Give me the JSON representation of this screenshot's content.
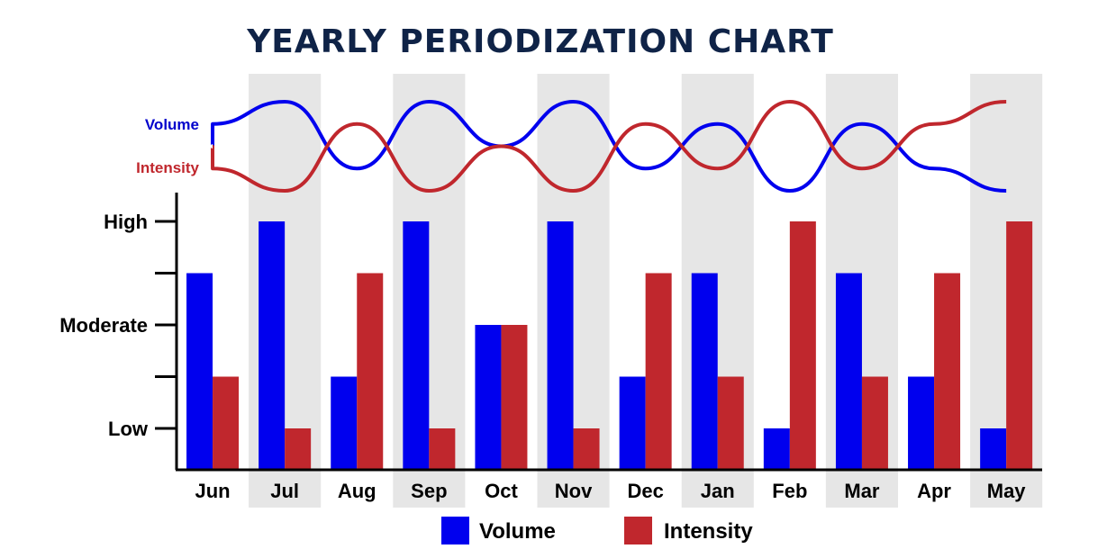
{
  "chart_data": {
    "type": "bar",
    "title": "YEARLY PERIODIZATION CHART",
    "categories": [
      "Jun",
      "Jul",
      "Aug",
      "Sep",
      "Oct",
      "Nov",
      "Dec",
      "Jan",
      "Feb",
      "Mar",
      "Apr",
      "May"
    ],
    "y_levels": [
      "Low",
      "Moderate",
      "High"
    ],
    "ylim": [
      0,
      4.8
    ],
    "series": [
      {
        "name": "Volume",
        "color": "#0000ee",
        "values": [
          3,
          4,
          1,
          4,
          2,
          4,
          1,
          3,
          0,
          3,
          1,
          0
        ]
      },
      {
        "name": "Intensity",
        "color": "#c0272d",
        "values": [
          1,
          0,
          3,
          0,
          2,
          0,
          3,
          1,
          4,
          1,
          3,
          4
        ]
      }
    ],
    "trend_labels": {
      "volume": "Volume",
      "intensity": "Intensity"
    },
    "legend": {
      "position": "bottom",
      "items": [
        "Volume",
        "Intensity"
      ]
    },
    "shaded_columns": [
      1,
      3,
      5,
      7,
      9,
      11
    ]
  }
}
